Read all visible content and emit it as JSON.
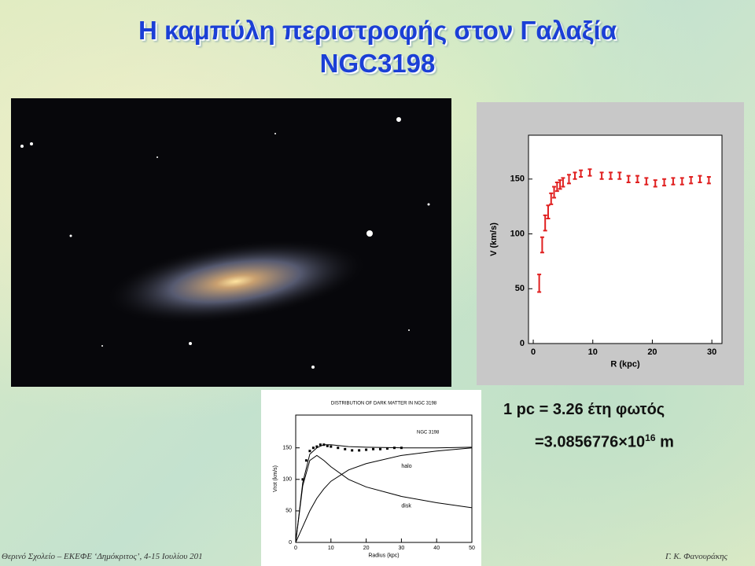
{
  "title": {
    "line1": "Η καμπύλη περιστροφής στον Γαλαξία",
    "line2": "NGC3198"
  },
  "formula": {
    "line1": "1 pc = 3.26 έτη φωτός",
    "mantissa": "=3.0856776×10",
    "exponent": "16",
    "unit": "m"
  },
  "footer": {
    "left": "Θερινό Σχολείο – ΕΚΕΦΕ ‘Δημόκριτος’, 4-15 Ιουλίου 201",
    "right": "Γ. Κ. Φανουράκης"
  },
  "chart_data": [
    {
      "type": "errorbar",
      "xlabel": "R (kpc)",
      "ylabel": "V (km/s)",
      "color": "#e02020",
      "xlim": [
        -0.8,
        31.7
      ],
      "ylim": [
        0,
        190
      ],
      "xticks": [
        0,
        10,
        20,
        30
      ],
      "yticks": [
        0,
        50,
        100,
        150
      ],
      "x": [
        1,
        1.5,
        2,
        2.5,
        3,
        3.5,
        4,
        4.5,
        5,
        6,
        7,
        8,
        9.5,
        11.5,
        13,
        14.5,
        16,
        17.5,
        19,
        20.5,
        22,
        23.5,
        25,
        26.5,
        28,
        29.5
      ],
      "values": [
        55,
        90,
        110,
        120,
        132,
        138,
        143,
        145,
        147,
        150,
        153,
        155,
        156,
        153,
        153,
        153,
        150,
        150,
        148,
        146,
        147,
        148,
        148,
        149,
        150,
        149
      ],
      "errors": [
        8,
        7,
        7,
        6,
        5,
        5,
        4,
        4,
        4,
        4,
        3,
        3,
        3,
        3,
        3,
        3,
        3,
        3,
        3,
        3,
        3,
        3,
        3,
        3,
        3,
        3
      ]
    },
    {
      "type": "line",
      "title": "DISTRIBUTION OF DARK MATTER IN NGC 3198",
      "annotation": "NGC 3198",
      "xlabel": "Radius   (kpc)",
      "ylabel": "Vrot (km/s)",
      "xlim": [
        0,
        50
      ],
      "ylim": [
        0,
        202
      ],
      "xticks": [
        0,
        10,
        20,
        30,
        40,
        50
      ],
      "yticks": [
        0,
        50,
        100,
        150
      ],
      "series": [
        {
          "color": "#000000",
          "points": true,
          "x": [
            2,
            3,
            4,
            5,
            6,
            7,
            8,
            9,
            10,
            12,
            14,
            16,
            18,
            20,
            22,
            24,
            26,
            28,
            30
          ],
          "values": [
            100,
            130,
            145,
            150,
            152,
            155,
            155,
            153,
            152,
            150,
            148,
            146,
            146,
            147,
            148,
            148,
            149,
            150,
            150
          ]
        },
        {
          "color": "#000000",
          "x": [
            0,
            2,
            4,
            6,
            8,
            10,
            15,
            20,
            30,
            40,
            50
          ],
          "values": [
            0,
            95,
            140,
            150,
            155,
            155,
            152,
            151,
            150,
            150,
            151
          ]
        },
        {
          "name": "halo",
          "color": "#000000",
          "x": [
            0,
            2,
            4,
            6,
            8,
            10,
            15,
            20,
            30,
            40,
            50
          ],
          "values": [
            0,
            25,
            50,
            70,
            85,
            97,
            115,
            125,
            138,
            145,
            150
          ]
        },
        {
          "name": "disk",
          "color": "#000000",
          "x": [
            0,
            2,
            4,
            6,
            8,
            10,
            15,
            20,
            30,
            40,
            50
          ],
          "values": [
            0,
            90,
            130,
            138,
            130,
            120,
            100,
            88,
            73,
            63,
            55
          ]
        }
      ]
    }
  ]
}
